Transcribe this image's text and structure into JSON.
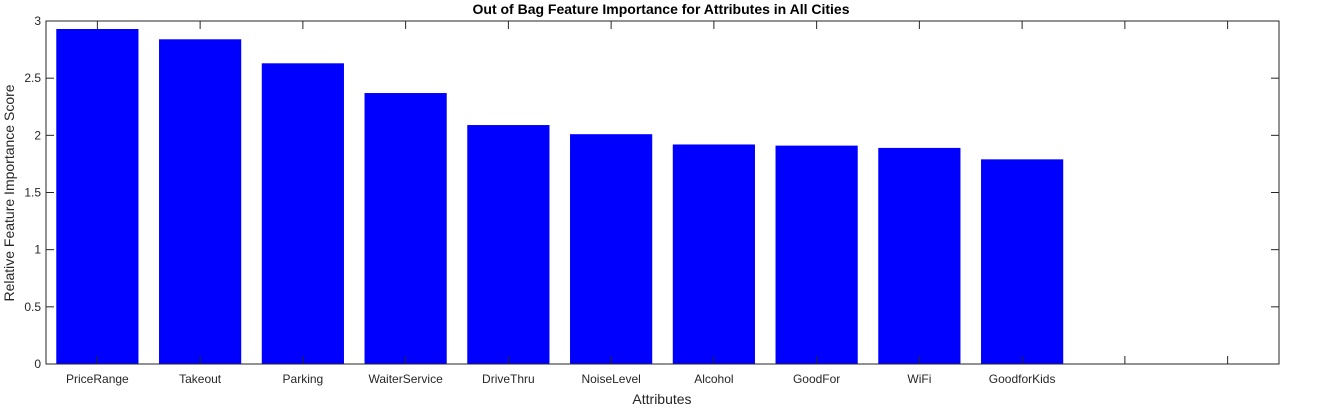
{
  "chart_data": {
    "type": "bar",
    "title": "Out of Bag Feature Importance for Attributes in All Cities",
    "xlabel": "Attributes",
    "ylabel": "Relative Feature Importance Score",
    "categories": [
      "PriceRange",
      "Takeout",
      "Parking",
      "WaiterService",
      "DriveThru",
      "NoiseLevel",
      "Alcohol",
      "GoodFor",
      "WiFi",
      "GoodforKids"
    ],
    "values": [
      2.93,
      2.84,
      2.63,
      2.37,
      2.09,
      2.01,
      1.92,
      1.91,
      1.89,
      1.79
    ],
    "xlim": [
      0.5,
      12.5
    ],
    "ylim": [
      0,
      3
    ],
    "yticks": [
      0,
      0.5,
      1,
      1.5,
      2,
      2.5,
      3
    ],
    "ytick_labels": [
      "0",
      "0.5",
      "1",
      "1.5",
      "2",
      "2.5",
      "3"
    ],
    "bar_color": "#0000ff",
    "grid": false,
    "legend": "none"
  }
}
